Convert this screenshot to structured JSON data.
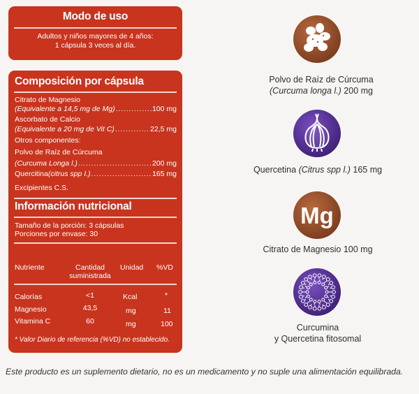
{
  "uso": {
    "title": "Modo de uso",
    "line1": "Adultos y niños mayores de 4 años:",
    "line2": "1 cápsula 3 veces al día."
  },
  "composicion": {
    "title": "Composición por cápsula",
    "items": [
      {
        "label": "Citrato de Magnesio",
        "value": ""
      },
      {
        "label": "(Equivalente a 14,5 mg de Mg)",
        "value": "100 mg"
      },
      {
        "label": "Ascorbato de Calcio",
        "value": ""
      },
      {
        "label": "(Equivalente a 20 mg de Vit C)",
        "value": "22,5 mg"
      },
      {
        "label": "Otros componentes:",
        "value": ""
      },
      {
        "label": "Polvo de Raíz de Cúrcuma",
        "value": ""
      },
      {
        "label": "(Curcuma Longa l.)",
        "value": "200 mg"
      },
      {
        "label_plain": "Quercitina ",
        "label_italic": "(citrus spp I.)",
        "value": "165 mg"
      },
      {
        "label": "Excipientes C.S.",
        "value": ""
      }
    ]
  },
  "nutricional": {
    "title": "Información nutricional",
    "porcion": "Tamaño de la porción: 3 cápsulas",
    "porciones": "Porciones por envase: 30",
    "headers": {
      "nutriente": "Nutriente",
      "cantidad_1": "Cantidad",
      "cantidad_2": "suministrada",
      "unidad": "Unidad",
      "vd": "%VD"
    },
    "rows": [
      {
        "nutriente": "Calorías",
        "cantidad": "<1",
        "unidad": "Kcal",
        "vd": "*"
      },
      {
        "nutriente": "Magnesio",
        "cantidad": "43,5",
        "unidad": "mg",
        "vd": "11"
      },
      {
        "nutriente": "Vitamina C",
        "cantidad": "60",
        "unidad": "mg",
        "vd": "100"
      }
    ],
    "footnote": "* Valor Diario de referencia (%VD) no establecido."
  },
  "ingredients": [
    {
      "icon": "ginger-root-icon",
      "color": "#8b4a2b",
      "line1": "Polvo de Raíz de Cúrcuma",
      "line2_italic": "(Curcuma longa l.)",
      "line2_plain": " 200 mg"
    },
    {
      "icon": "onion-icon",
      "color": "#4b2a86",
      "line1_plain": "Quercetina ",
      "line1_italic": "(Citrus spp l.)",
      "line1_end": " 165 mg"
    },
    {
      "icon": "mg-icon",
      "color": "#8b4a2b",
      "mg_text": "Mg",
      "line1": "Citrato de Magnesio 100 mg"
    },
    {
      "icon": "phytosome-icon",
      "color": "#4b2a86",
      "line1": "Curcumina",
      "line2": "y Quercetina fitosomal"
    }
  ],
  "disclaimer": "Este producto es un suplemento dietario, no es un medicamento y no suple una alimentación equilibrada."
}
